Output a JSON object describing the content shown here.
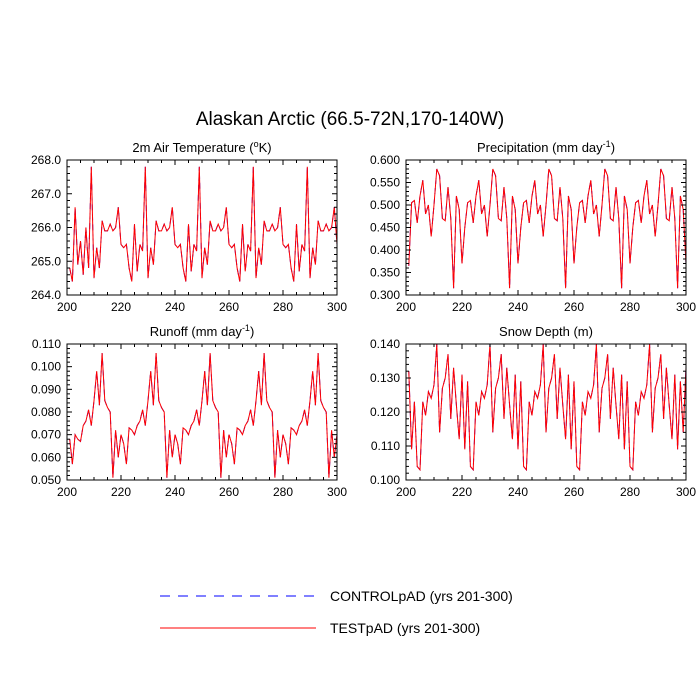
{
  "main_title": "Alaskan Arctic (66.5-72N,170-140W)",
  "legend": [
    {
      "label": "CONTROLpAD (yrs 201-300)",
      "color": "#0000ff",
      "style": "dashed"
    },
    {
      "label": "TESTpAD (yrs 201-300)",
      "color": "#ff0000",
      "style": "solid"
    }
  ],
  "chart_data": [
    {
      "type": "line",
      "title": "2m Air Temperature (°K)",
      "title_parts": {
        "pre": "2m Air Temperature (",
        "sup": "o",
        "post": "K)"
      },
      "xlim": [
        200,
        300
      ],
      "ylim": [
        264.0,
        268.0
      ],
      "xticks": [
        "200",
        "220",
        "240",
        "260",
        "280",
        "300"
      ],
      "yticks": [
        "264.0",
        "265.0",
        "266.0",
        "267.0",
        "268.0"
      ],
      "x_start": 201,
      "series": [
        {
          "name": "CONTROLpAD (yrs 201-300)",
          "values": [
            264.8,
            264.4,
            266.6,
            264.9,
            265.6,
            264.6,
            266.0,
            264.8,
            267.8,
            264.5,
            265.4,
            264.8,
            266.2,
            265.9,
            265.9,
            266.1,
            265.9,
            266.0,
            266.6,
            265.5,
            265.4,
            265.5,
            264.8,
            264.4,
            266.1,
            264.7,
            265.5,
            265.3,
            267.8,
            264.5,
            265.4,
            264.9,
            266.2,
            265.9,
            265.9,
            266.1,
            265.9,
            266.0,
            266.6,
            265.5,
            265.4,
            265.5,
            264.8,
            264.4,
            266.1,
            264.7,
            265.5,
            265.3,
            267.8,
            264.5,
            265.4,
            264.9,
            266.2,
            265.9,
            265.9,
            266.1,
            265.9,
            266.0,
            266.6,
            265.5,
            265.4,
            265.5,
            264.8,
            264.4,
            266.1,
            264.7,
            265.5,
            265.3,
            267.8,
            264.5,
            265.4,
            264.9,
            266.2,
            265.9,
            265.9,
            266.1,
            265.9,
            266.0,
            266.6,
            265.5,
            265.4,
            265.5,
            264.8,
            264.4,
            266.1,
            264.7,
            265.5,
            265.3,
            267.8,
            264.5,
            265.4,
            264.9,
            266.2,
            265.9,
            265.9,
            266.1,
            265.9,
            266.0,
            266.6,
            265.5
          ]
        },
        {
          "name": "TESTpAD (yrs 201-300)",
          "values": [
            264.8,
            264.4,
            266.6,
            264.9,
            265.6,
            264.6,
            266.0,
            264.8,
            267.8,
            264.5,
            265.4,
            264.8,
            266.2,
            265.9,
            265.9,
            266.1,
            265.9,
            266.0,
            266.6,
            265.5,
            265.4,
            265.5,
            264.8,
            264.4,
            266.1,
            264.7,
            265.5,
            265.3,
            267.8,
            264.5,
            265.4,
            264.9,
            266.2,
            265.9,
            265.9,
            266.1,
            265.9,
            266.0,
            266.6,
            265.5,
            265.4,
            265.5,
            264.8,
            264.4,
            266.1,
            264.7,
            265.5,
            265.3,
            267.8,
            264.5,
            265.4,
            264.9,
            266.2,
            265.9,
            265.9,
            266.1,
            265.9,
            266.0,
            266.6,
            265.5,
            265.4,
            265.5,
            264.8,
            264.4,
            266.1,
            264.7,
            265.5,
            265.3,
            267.8,
            264.5,
            265.4,
            264.9,
            266.2,
            265.9,
            265.9,
            266.1,
            265.9,
            266.0,
            266.6,
            265.5,
            265.4,
            265.5,
            264.8,
            264.4,
            266.1,
            264.7,
            265.5,
            265.3,
            267.8,
            264.5,
            265.4,
            264.9,
            266.2,
            265.9,
            265.9,
            266.1,
            265.9,
            266.0,
            266.6,
            265.5
          ]
        }
      ]
    },
    {
      "type": "line",
      "title": "Precipitation (mm day-1)",
      "title_parts": {
        "pre": "Precipitation (mm day",
        "sup": "-1",
        "post": ")"
      },
      "xlim": [
        200,
        300
      ],
      "ylim": [
        0.3,
        0.6
      ],
      "xticks": [
        "200",
        "220",
        "240",
        "260",
        "280",
        "300"
      ],
      "yticks": [
        "0.300",
        "0.350",
        "0.400",
        "0.450",
        "0.500",
        "0.550",
        "0.600"
      ],
      "x_start": 201,
      "series": [
        {
          "name": "CONTROLpAD (yrs 201-300)",
          "values": [
            0.365,
            0.505,
            0.51,
            0.46,
            0.52,
            0.555,
            0.48,
            0.5,
            0.43,
            0.5,
            0.58,
            0.565,
            0.47,
            0.465,
            0.54,
            0.47,
            0.315,
            0.52,
            0.49,
            0.37,
            0.45,
            0.505,
            0.51,
            0.46,
            0.52,
            0.555,
            0.48,
            0.5,
            0.43,
            0.5,
            0.58,
            0.565,
            0.47,
            0.465,
            0.54,
            0.47,
            0.315,
            0.52,
            0.49,
            0.37,
            0.45,
            0.505,
            0.51,
            0.46,
            0.52,
            0.555,
            0.48,
            0.5,
            0.43,
            0.5,
            0.58,
            0.565,
            0.47,
            0.465,
            0.54,
            0.47,
            0.315,
            0.52,
            0.49,
            0.37,
            0.45,
            0.505,
            0.51,
            0.46,
            0.52,
            0.555,
            0.48,
            0.5,
            0.43,
            0.5,
            0.58,
            0.565,
            0.47,
            0.465,
            0.54,
            0.47,
            0.315,
            0.52,
            0.49,
            0.37,
            0.45,
            0.505,
            0.51,
            0.46,
            0.52,
            0.555,
            0.48,
            0.5,
            0.43,
            0.5,
            0.58,
            0.565,
            0.47,
            0.465,
            0.54,
            0.47,
            0.315,
            0.52,
            0.49,
            0.37
          ]
        },
        {
          "name": "TESTpAD (yrs 201-300)",
          "values": [
            0.365,
            0.505,
            0.51,
            0.46,
            0.52,
            0.555,
            0.48,
            0.5,
            0.43,
            0.5,
            0.58,
            0.565,
            0.47,
            0.465,
            0.54,
            0.47,
            0.315,
            0.52,
            0.49,
            0.37,
            0.45,
            0.505,
            0.51,
            0.46,
            0.52,
            0.555,
            0.48,
            0.5,
            0.43,
            0.5,
            0.58,
            0.565,
            0.47,
            0.465,
            0.54,
            0.47,
            0.315,
            0.52,
            0.49,
            0.37,
            0.45,
            0.505,
            0.51,
            0.46,
            0.52,
            0.555,
            0.48,
            0.5,
            0.43,
            0.5,
            0.58,
            0.565,
            0.47,
            0.465,
            0.54,
            0.47,
            0.315,
            0.52,
            0.49,
            0.37,
            0.45,
            0.505,
            0.51,
            0.46,
            0.52,
            0.555,
            0.48,
            0.5,
            0.43,
            0.5,
            0.58,
            0.565,
            0.47,
            0.465,
            0.54,
            0.47,
            0.315,
            0.52,
            0.49,
            0.37,
            0.45,
            0.505,
            0.51,
            0.46,
            0.52,
            0.555,
            0.48,
            0.5,
            0.43,
            0.5,
            0.58,
            0.565,
            0.47,
            0.465,
            0.54,
            0.47,
            0.315,
            0.52,
            0.49,
            0.37
          ]
        }
      ]
    },
    {
      "type": "line",
      "title": "Runoff (mm day-1)",
      "title_parts": {
        "pre": "Runoff (mm day",
        "sup": "-1",
        "post": ")"
      },
      "xlim": [
        200,
        300
      ],
      "ylim": [
        0.05,
        0.11
      ],
      "xticks": [
        "200",
        "220",
        "240",
        "260",
        "280",
        "300"
      ],
      "yticks": [
        "0.050",
        "0.060",
        "0.070",
        "0.080",
        "0.090",
        "0.100",
        "0.110"
      ],
      "x_start": 201,
      "series": [
        {
          "name": "CONTROLpAD (yrs 201-300)",
          "values": [
            0.068,
            0.057,
            0.07,
            0.068,
            0.067,
            0.074,
            0.076,
            0.081,
            0.074,
            0.085,
            0.098,
            0.083,
            0.106,
            0.085,
            0.082,
            0.08,
            0.051,
            0.072,
            0.06,
            0.07,
            0.066,
            0.057,
            0.073,
            0.072,
            0.07,
            0.074,
            0.076,
            0.081,
            0.074,
            0.085,
            0.098,
            0.083,
            0.106,
            0.085,
            0.082,
            0.08,
            0.051,
            0.072,
            0.06,
            0.07,
            0.066,
            0.057,
            0.073,
            0.072,
            0.07,
            0.074,
            0.076,
            0.081,
            0.074,
            0.085,
            0.098,
            0.083,
            0.106,
            0.085,
            0.082,
            0.08,
            0.051,
            0.072,
            0.06,
            0.07,
            0.066,
            0.057,
            0.073,
            0.072,
            0.07,
            0.074,
            0.076,
            0.081,
            0.074,
            0.085,
            0.098,
            0.083,
            0.106,
            0.085,
            0.082,
            0.08,
            0.051,
            0.072,
            0.06,
            0.07,
            0.066,
            0.057,
            0.073,
            0.072,
            0.07,
            0.074,
            0.076,
            0.081,
            0.074,
            0.085,
            0.098,
            0.083,
            0.106,
            0.085,
            0.082,
            0.08,
            0.051,
            0.072,
            0.06,
            0.07
          ]
        },
        {
          "name": "TESTpAD (yrs 201-300)",
          "values": [
            0.068,
            0.057,
            0.07,
            0.068,
            0.067,
            0.074,
            0.076,
            0.081,
            0.074,
            0.085,
            0.098,
            0.083,
            0.106,
            0.085,
            0.082,
            0.08,
            0.051,
            0.072,
            0.06,
            0.07,
            0.066,
            0.057,
            0.073,
            0.072,
            0.07,
            0.074,
            0.076,
            0.081,
            0.074,
            0.085,
            0.098,
            0.083,
            0.106,
            0.085,
            0.082,
            0.08,
            0.051,
            0.072,
            0.06,
            0.07,
            0.066,
            0.057,
            0.073,
            0.072,
            0.07,
            0.074,
            0.076,
            0.081,
            0.074,
            0.085,
            0.098,
            0.083,
            0.106,
            0.085,
            0.082,
            0.08,
            0.051,
            0.072,
            0.06,
            0.07,
            0.066,
            0.057,
            0.073,
            0.072,
            0.07,
            0.074,
            0.076,
            0.081,
            0.074,
            0.085,
            0.098,
            0.083,
            0.106,
            0.085,
            0.082,
            0.08,
            0.051,
            0.072,
            0.06,
            0.07,
            0.066,
            0.057,
            0.073,
            0.072,
            0.07,
            0.074,
            0.076,
            0.081,
            0.074,
            0.085,
            0.098,
            0.083,
            0.106,
            0.085,
            0.082,
            0.08,
            0.051,
            0.072,
            0.06,
            0.07
          ]
        }
      ]
    },
    {
      "type": "line",
      "title": "Snow Depth (m)",
      "title_parts": {
        "pre": "Snow Depth (m)",
        "sup": "",
        "post": ""
      },
      "xlim": [
        200,
        300
      ],
      "ylim": [
        0.1,
        0.14
      ],
      "xticks": [
        "200",
        "220",
        "240",
        "260",
        "280",
        "300"
      ],
      "yticks": [
        "0.100",
        "0.110",
        "0.120",
        "0.130",
        "0.140"
      ],
      "x_start": 201,
      "series": [
        {
          "name": "CONTROLpAD (yrs 201-300)",
          "values": [
            0.132,
            0.109,
            0.123,
            0.104,
            0.103,
            0.123,
            0.119,
            0.126,
            0.124,
            0.128,
            0.14,
            0.114,
            0.127,
            0.13,
            0.137,
            0.118,
            0.133,
            0.122,
            0.112,
            0.131,
            0.109,
            0.129,
            0.104,
            0.103,
            0.123,
            0.119,
            0.126,
            0.124,
            0.128,
            0.14,
            0.114,
            0.127,
            0.13,
            0.137,
            0.118,
            0.133,
            0.122,
            0.112,
            0.131,
            0.109,
            0.129,
            0.104,
            0.103,
            0.123,
            0.119,
            0.126,
            0.124,
            0.128,
            0.14,
            0.114,
            0.127,
            0.13,
            0.137,
            0.118,
            0.133,
            0.122,
            0.112,
            0.131,
            0.109,
            0.129,
            0.104,
            0.103,
            0.123,
            0.119,
            0.126,
            0.124,
            0.128,
            0.14,
            0.114,
            0.127,
            0.13,
            0.137,
            0.118,
            0.133,
            0.122,
            0.112,
            0.131,
            0.109,
            0.129,
            0.104,
            0.103,
            0.123,
            0.119,
            0.126,
            0.124,
            0.128,
            0.14,
            0.114,
            0.127,
            0.13,
            0.137,
            0.118,
            0.133,
            0.122,
            0.112,
            0.131,
            0.109,
            0.129,
            0.114,
            0.133
          ]
        },
        {
          "name": "TESTpAD (yrs 201-300)",
          "values": [
            0.132,
            0.109,
            0.123,
            0.104,
            0.103,
            0.123,
            0.119,
            0.126,
            0.124,
            0.128,
            0.14,
            0.114,
            0.127,
            0.13,
            0.137,
            0.118,
            0.133,
            0.122,
            0.112,
            0.131,
            0.109,
            0.129,
            0.104,
            0.103,
            0.123,
            0.119,
            0.126,
            0.124,
            0.128,
            0.14,
            0.114,
            0.127,
            0.13,
            0.137,
            0.118,
            0.133,
            0.122,
            0.112,
            0.131,
            0.109,
            0.129,
            0.104,
            0.103,
            0.123,
            0.119,
            0.126,
            0.124,
            0.128,
            0.14,
            0.114,
            0.127,
            0.13,
            0.137,
            0.118,
            0.133,
            0.122,
            0.112,
            0.131,
            0.109,
            0.129,
            0.104,
            0.103,
            0.123,
            0.119,
            0.126,
            0.124,
            0.128,
            0.14,
            0.114,
            0.127,
            0.13,
            0.137,
            0.118,
            0.133,
            0.122,
            0.112,
            0.131,
            0.109,
            0.129,
            0.104,
            0.103,
            0.123,
            0.119,
            0.126,
            0.124,
            0.128,
            0.14,
            0.114,
            0.127,
            0.13,
            0.137,
            0.118,
            0.133,
            0.122,
            0.112,
            0.131,
            0.109,
            0.129,
            0.114,
            0.133
          ]
        }
      ]
    }
  ]
}
